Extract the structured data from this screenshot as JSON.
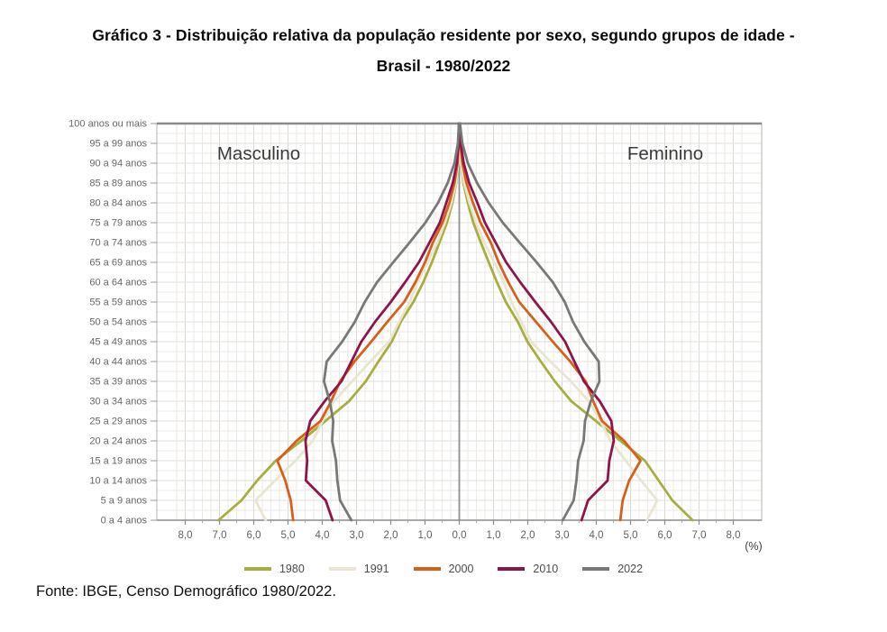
{
  "title": {
    "line1": "Gráfico 3 - Distribuição relativa da população residente por sexo, segundo grupos de idade -",
    "line2": "Brasil - 1980/2022"
  },
  "footer": {
    "source": "Fonte: IBGE, Censo Demográfico 1980/2022."
  },
  "chart_data": {
    "type": "line",
    "subtype": "population-pyramid",
    "title": "Distribuição relativa da população residente por sexo, segundo grupos de idade - Brasil - 1980/2022",
    "side_labels": {
      "left": "Masculino",
      "right": "Feminino"
    },
    "unit_label": "(%)",
    "grid": true,
    "legend_position": "bottom",
    "xlim": [
      -8.85,
      8.85
    ],
    "x_ticks": {
      "values": [
        -8,
        -7,
        -6,
        -5,
        -4,
        -3,
        -2,
        -1,
        0,
        1,
        2,
        3,
        4,
        5,
        6,
        7,
        8
      ],
      "labels": [
        "8,0",
        "7,0",
        "6,0",
        "5,0",
        "4,0",
        "3,0",
        "2,0",
        "1,0",
        "0,0",
        "1,0",
        "2,0",
        "3,0",
        "4,0",
        "5,0",
        "6,0",
        "7,0",
        "8,0"
      ]
    },
    "age_groups": [
      "100 anos ou mais",
      "95 a 99 anos",
      "90 a 94 anos",
      "85 a 89 anos",
      "80 a 84 anos",
      "75 a 79 anos",
      "70 a 74 anos",
      "65 a 69 anos",
      "60 a 64 anos",
      "55 a 59 anos",
      "50 a 54 anos",
      "45 a 49 anos",
      "40 a 44 anos",
      "35 a 39 anos",
      "30 a 34 anos",
      "25 a 29 anos",
      "20 a 24 anos",
      "15 a 19 anos",
      "10 a 14 anos",
      "5 a 9 anos",
      "0 a 4 anos"
    ],
    "series": [
      {
        "name": "1980",
        "color": "#a8ae3d",
        "male": [
          0.0,
          0.01,
          0.03,
          0.09,
          0.2,
          0.36,
          0.58,
          0.8,
          1.05,
          1.34,
          1.71,
          1.97,
          2.36,
          2.73,
          3.22,
          3.91,
          4.61,
          5.36,
          5.9,
          6.36,
          7.03
        ],
        "female": [
          0.01,
          0.02,
          0.05,
          0.12,
          0.25,
          0.41,
          0.63,
          0.86,
          1.1,
          1.36,
          1.71,
          1.99,
          2.38,
          2.79,
          3.27,
          3.99,
          4.71,
          5.42,
          5.82,
          6.22,
          6.81
        ]
      },
      {
        "name": "1991",
        "color": "#e9e5d1",
        "male": [
          0.0,
          0.01,
          0.03,
          0.1,
          0.23,
          0.42,
          0.64,
          0.93,
          1.22,
          1.45,
          1.76,
          2.05,
          2.6,
          3.13,
          3.65,
          3.99,
          4.28,
          4.78,
          5.38,
          5.95,
          5.65
        ],
        "female": [
          0.01,
          0.02,
          0.05,
          0.14,
          0.3,
          0.49,
          0.73,
          1.02,
          1.3,
          1.52,
          1.81,
          2.1,
          2.66,
          3.26,
          3.78,
          4.12,
          4.41,
          4.86,
          5.31,
          5.78,
          5.48
        ]
      },
      {
        "name": "2000",
        "color": "#d6601a",
        "male": [
          0.01,
          0.02,
          0.05,
          0.14,
          0.29,
          0.49,
          0.77,
          1.0,
          1.28,
          1.61,
          2.1,
          2.57,
          3.06,
          3.48,
          3.74,
          4.05,
          4.75,
          5.31,
          5.08,
          4.92,
          4.85
        ],
        "female": [
          0.01,
          0.03,
          0.09,
          0.21,
          0.4,
          0.62,
          0.92,
          1.15,
          1.43,
          1.75,
          2.24,
          2.73,
          3.24,
          3.69,
          3.91,
          4.17,
          4.81,
          5.29,
          4.96,
          4.77,
          4.7
        ]
      },
      {
        "name": "2010",
        "color": "#8e1549",
        "male": [
          0.01,
          0.02,
          0.07,
          0.19,
          0.38,
          0.57,
          0.87,
          1.18,
          1.58,
          2.0,
          2.46,
          2.86,
          3.15,
          3.44,
          3.93,
          4.35,
          4.49,
          4.44,
          4.48,
          3.9,
          3.7
        ],
        "female": [
          0.01,
          0.04,
          0.13,
          0.29,
          0.53,
          0.75,
          1.06,
          1.37,
          1.78,
          2.22,
          2.68,
          3.09,
          3.36,
          3.64,
          4.1,
          4.44,
          4.51,
          4.38,
          4.33,
          3.76,
          3.57
        ]
      },
      {
        "name": "2022",
        "color": "#787877",
        "male": [
          0.01,
          0.04,
          0.14,
          0.34,
          0.62,
          0.99,
          1.45,
          1.93,
          2.4,
          2.76,
          3.05,
          3.42,
          3.87,
          3.95,
          3.78,
          3.68,
          3.71,
          3.6,
          3.56,
          3.48,
          3.15
        ],
        "female": [
          0.02,
          0.09,
          0.25,
          0.52,
          0.86,
          1.27,
          1.76,
          2.26,
          2.73,
          3.08,
          3.32,
          3.65,
          4.07,
          4.09,
          3.84,
          3.67,
          3.63,
          3.47,
          3.42,
          3.34,
          3.02
        ]
      }
    ]
  }
}
